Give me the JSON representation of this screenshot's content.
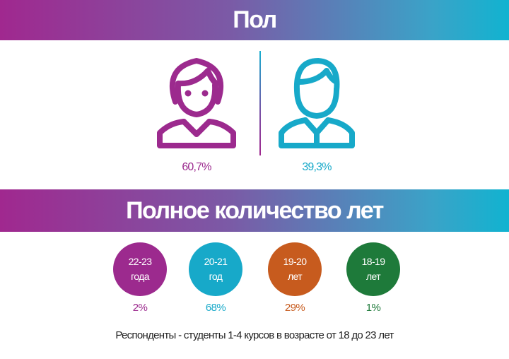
{
  "gender": {
    "title": "Пол",
    "female": {
      "value_label": "60,7%",
      "icon": "female-person-icon"
    },
    "male": {
      "value_label": "39,3%",
      "icon": "male-person-icon"
    }
  },
  "age": {
    "title": "Полное количество  лет",
    "groups": [
      {
        "line1": "22-23",
        "line2": "года",
        "value_label": "2%"
      },
      {
        "line1": "20-21",
        "line2": "год",
        "value_label": "68%"
      },
      {
        "line1": "19-20",
        "line2": "лет",
        "value_label": "29%"
      },
      {
        "line1": "18-19",
        "line2": "лет",
        "value_label": "1%"
      }
    ]
  },
  "footnote": "Респонденты -  студенты 1-4 курсов в возрасте от 18 до 23  лет",
  "colors": {
    "purple": "#9c2a8e",
    "cyan": "#17a9c9",
    "orange": "#c75b1e",
    "green": "#1e7a3a",
    "gradient_start": "#a0288f",
    "gradient_end": "#11b3d0"
  },
  "chart_data": [
    {
      "type": "table",
      "title": "Пол",
      "categories": [
        "female",
        "male"
      ],
      "values": [
        60.7,
        39.3
      ]
    },
    {
      "type": "table",
      "title": "Полное количество  лет",
      "categories": [
        "22-23 года",
        "20-21 год",
        "19-20 лет",
        "18-19 лет"
      ],
      "values": [
        2,
        68,
        29,
        1
      ]
    }
  ]
}
